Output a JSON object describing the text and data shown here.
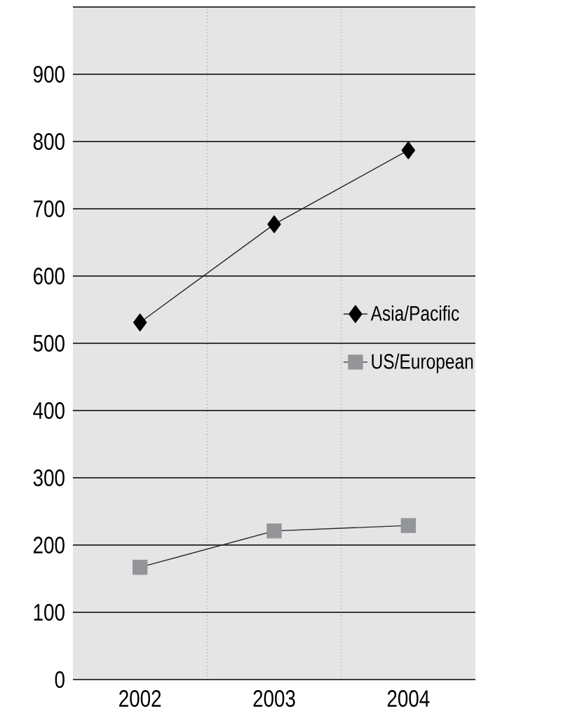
{
  "chart_data": {
    "type": "line",
    "categories": [
      "2002",
      "2003",
      "2004"
    ],
    "series": [
      {
        "name": "Asia/Pacific",
        "color": "#000000",
        "marker": "diamond",
        "values": [
          531,
          677,
          787
        ]
      },
      {
        "name": "US/European",
        "color": "#939598",
        "marker": "square",
        "values": [
          167,
          221,
          229
        ]
      }
    ],
    "ylim": [
      0,
      1000
    ],
    "yticks": [
      0,
      100,
      200,
      300,
      400,
      500,
      600,
      700,
      800,
      900,
      {
        "value": 1000,
        "label": null
      }
    ],
    "grid": true,
    "legend": "right",
    "line_style": "solid"
  }
}
